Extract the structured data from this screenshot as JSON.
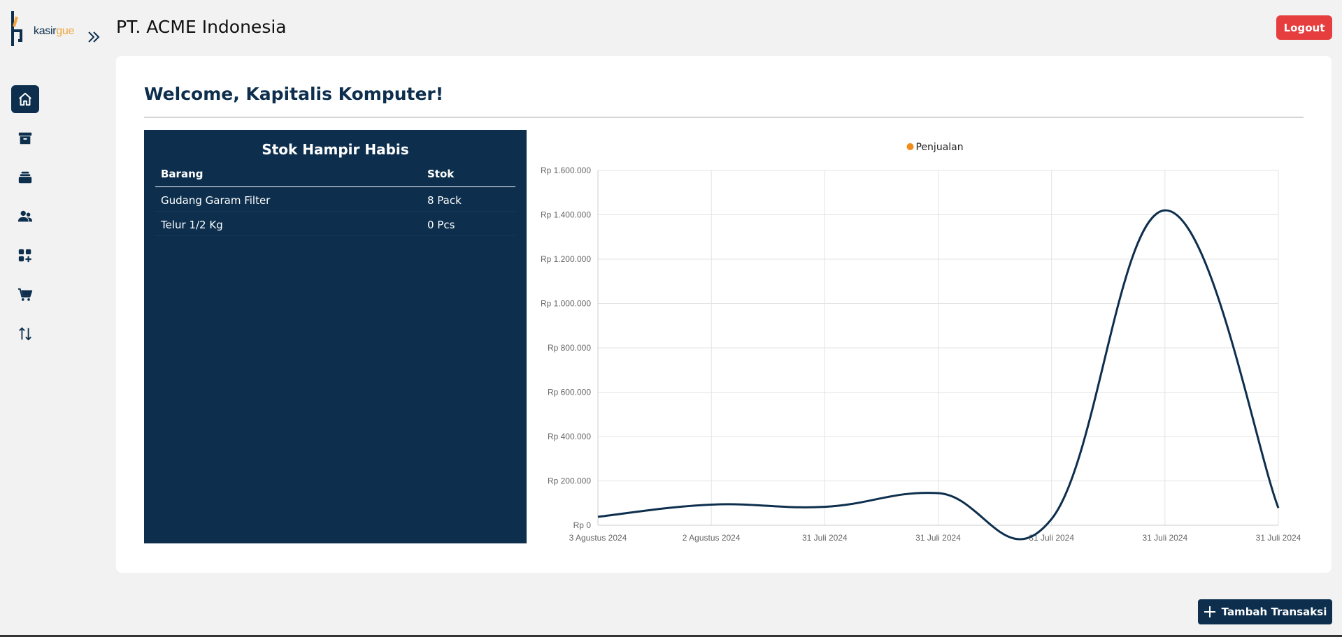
{
  "brand": {
    "part1": "kasir",
    "part2": "gue"
  },
  "header": {
    "title": "PT. ACME Indonesia",
    "logout_label": "Logout"
  },
  "sidebar": {
    "items": [
      {
        "icon": "home-icon",
        "active": true
      },
      {
        "icon": "archive-icon",
        "active": false
      },
      {
        "icon": "stack-icon",
        "active": false
      },
      {
        "icon": "users-icon",
        "active": false
      },
      {
        "icon": "add-category-icon",
        "active": false
      },
      {
        "icon": "cart-icon",
        "active": false
      },
      {
        "icon": "transfer-arrows-icon",
        "active": false
      }
    ]
  },
  "main": {
    "welcome": "Welcome, Kapitalis Komputer!"
  },
  "stock": {
    "title": "Stok Hampir Habis",
    "columns": [
      "Barang",
      "Stok"
    ],
    "rows": [
      [
        "Gudang Garam Filter",
        "8 Pack"
      ],
      [
        "Telur 1/2 Kg",
        "0 Pcs"
      ]
    ]
  },
  "chart_data": {
    "type": "line",
    "legend": [
      "Penjualan"
    ],
    "legend_position": "top",
    "categories": [
      "3 Agustus 2024",
      "2 Agustus 2024",
      "31 Juli 2024",
      "31 Juli 2024",
      "31 Juli 2024",
      "31 Juli 2024",
      "31 Juli 2024"
    ],
    "series": [
      {
        "name": "Penjualan",
        "values": [
          38000,
          93000,
          83000,
          145000,
          28000,
          1420000,
          78000
        ]
      }
    ],
    "ylim": [
      0,
      1600000
    ],
    "yticks": [
      "Rp 0",
      "Rp 200.000",
      "Rp 400.000",
      "Rp 600.000",
      "Rp 800.000",
      "Rp 1.000.000",
      "Rp 1.200.000",
      "Rp 1.400.000",
      "Rp 1.600.000"
    ],
    "grid": true,
    "line_color": "#0d2f4d",
    "legend_color": "#f08c1a"
  },
  "actions": {
    "add_transaction_label": "Tambah Transaksi"
  },
  "colors": {
    "primary": "#0d2f4d",
    "accent": "#f0a640",
    "danger": "#e63e3e"
  }
}
